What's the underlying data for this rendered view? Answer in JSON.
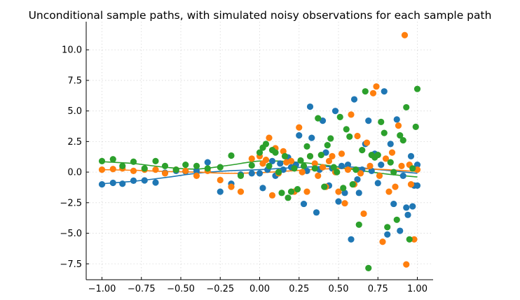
{
  "chart_data": {
    "type": "scatter",
    "title": "Unconditional sample paths, with simulated noisy observations for each sample path",
    "xlabel": "",
    "ylabel": "",
    "xlim": [
      -1.1,
      1.1
    ],
    "ylim": [
      -8.8,
      12.3
    ],
    "x_ticks": [
      -1.0,
      -0.75,
      -0.5,
      -0.25,
      0.0,
      0.25,
      0.5,
      0.75,
      1.0
    ],
    "x_tick_labels": [
      "−1.00",
      "−0.75",
      "−0.50",
      "−0.25",
      "0.00",
      "0.25",
      "0.50",
      "0.75",
      "1.00"
    ],
    "y_ticks": [
      -7.5,
      -5.0,
      -2.5,
      0.0,
      2.5,
      5.0,
      7.5,
      10.0
    ],
    "y_tick_labels": [
      "−7.5",
      "−5.0",
      "−2.5",
      "0.0",
      "2.5",
      "5.0",
      "7.5",
      "10.0"
    ],
    "grid": true,
    "legend": "none",
    "series": [
      {
        "color": "#1f77b4",
        "line": [
          [
            -1.0,
            -0.95
          ],
          [
            -0.8,
            -0.75
          ],
          [
            -0.6,
            -0.45
          ],
          [
            -0.4,
            -0.1
          ],
          [
            -0.2,
            0.1
          ],
          [
            0.0,
            0.2
          ],
          [
            0.2,
            0.35
          ],
          [
            0.4,
            0.45
          ],
          [
            0.6,
            0.4
          ],
          [
            0.8,
            0.15
          ],
          [
            1.0,
            -0.1
          ]
        ],
        "points": [
          [
            -1.0,
            -1.0
          ],
          [
            -0.93,
            -0.88
          ],
          [
            -0.87,
            -0.95
          ],
          [
            -0.8,
            -0.7
          ],
          [
            -0.73,
            -0.68
          ],
          [
            -0.66,
            -0.85
          ],
          [
            -0.6,
            -0.05
          ],
          [
            -0.53,
            0.1
          ],
          [
            -0.47,
            0.05
          ],
          [
            -0.4,
            0.1
          ],
          [
            -0.33,
            0.8
          ],
          [
            -0.25,
            -1.6
          ],
          [
            -0.18,
            -0.95
          ],
          [
            -0.12,
            -0.2
          ],
          [
            -0.05,
            -0.1
          ],
          [
            0.0,
            -0.1
          ],
          [
            0.02,
            -1.3
          ],
          [
            0.05,
            0.2
          ],
          [
            0.08,
            0.9
          ],
          [
            0.1,
            -0.3
          ],
          [
            0.13,
            0.7
          ],
          [
            0.15,
            0.2
          ],
          [
            0.18,
            1.2
          ],
          [
            0.2,
            0.4
          ],
          [
            0.23,
            0.6
          ],
          [
            0.25,
            3.0
          ],
          [
            0.28,
            -2.6
          ],
          [
            0.3,
            0.1
          ],
          [
            0.32,
            5.35
          ],
          [
            0.33,
            2.8
          ],
          [
            0.36,
            -3.3
          ],
          [
            0.38,
            0.2
          ],
          [
            0.4,
            4.2
          ],
          [
            0.42,
            1.6
          ],
          [
            0.44,
            -1.1
          ],
          [
            0.46,
            0.3
          ],
          [
            0.48,
            5.0
          ],
          [
            0.5,
            -2.4
          ],
          [
            0.52,
            0.5
          ],
          [
            0.54,
            -1.7
          ],
          [
            0.56,
            0.6
          ],
          [
            0.58,
            -5.5
          ],
          [
            0.6,
            5.95
          ],
          [
            0.62,
            -0.6
          ],
          [
            0.63,
            -1.7
          ],
          [
            0.65,
            0.2
          ],
          [
            0.67,
            2.3
          ],
          [
            0.69,
            4.2
          ],
          [
            0.71,
            0.1
          ],
          [
            0.73,
            1.5
          ],
          [
            0.75,
            -0.9
          ],
          [
            0.77,
            0.6
          ],
          [
            0.79,
            6.6
          ],
          [
            0.81,
            -5.1
          ],
          [
            0.83,
            2.3
          ],
          [
            0.85,
            -2.6
          ],
          [
            0.87,
            4.3
          ],
          [
            0.89,
            -4.8
          ],
          [
            0.91,
            -0.3
          ],
          [
            0.93,
            -2.9
          ],
          [
            0.94,
            -3.5
          ],
          [
            0.96,
            1.3
          ],
          [
            0.97,
            -2.8
          ],
          [
            0.98,
            -1.1
          ],
          [
            1.0,
            0.6
          ],
          [
            1.0,
            -1.1
          ]
        ]
      },
      {
        "color": "#ff7f0e",
        "line": [
          [
            -1.0,
            0.2
          ],
          [
            -0.8,
            0.15
          ],
          [
            -0.6,
            0.05
          ],
          [
            -0.4,
            0.0
          ],
          [
            -0.2,
            -0.1
          ],
          [
            0.0,
            -0.05
          ],
          [
            0.2,
            0.1
          ],
          [
            0.4,
            0.25
          ],
          [
            0.6,
            0.3
          ],
          [
            0.8,
            0.2
          ],
          [
            1.0,
            0.05
          ]
        ],
        "points": [
          [
            -1.0,
            0.2
          ],
          [
            -0.93,
            0.25
          ],
          [
            -0.87,
            0.3
          ],
          [
            -0.8,
            0.1
          ],
          [
            -0.73,
            0.2
          ],
          [
            -0.66,
            0.2
          ],
          [
            -0.6,
            -0.1
          ],
          [
            -0.53,
            0.2
          ],
          [
            -0.47,
            0.1
          ],
          [
            -0.4,
            -0.3
          ],
          [
            -0.33,
            0.1
          ],
          [
            -0.25,
            -0.65
          ],
          [
            -0.18,
            -1.2
          ],
          [
            -0.12,
            -1.6
          ],
          [
            -0.05,
            1.1
          ],
          [
            0.0,
            1.3
          ],
          [
            0.02,
            0.7
          ],
          [
            0.04,
            1.0
          ],
          [
            0.06,
            2.8
          ],
          [
            0.08,
            -1.9
          ],
          [
            0.1,
            1.95
          ],
          [
            0.12,
            -0.1
          ],
          [
            0.15,
            1.7
          ],
          [
            0.17,
            0.8
          ],
          [
            0.2,
            0.9
          ],
          [
            0.22,
            -1.6
          ],
          [
            0.25,
            3.65
          ],
          [
            0.27,
            0.0
          ],
          [
            0.3,
            -1.6
          ],
          [
            0.32,
            1.3
          ],
          [
            0.35,
            0.7
          ],
          [
            0.37,
            -0.3
          ],
          [
            0.4,
            0.4
          ],
          [
            0.42,
            -1.2
          ],
          [
            0.44,
            0.9
          ],
          [
            0.46,
            1.3
          ],
          [
            0.48,
            0.0
          ],
          [
            0.5,
            -1.6
          ],
          [
            0.52,
            1.5
          ],
          [
            0.54,
            -2.55
          ],
          [
            0.56,
            0.2
          ],
          [
            0.58,
            4.7
          ],
          [
            0.6,
            -1.0
          ],
          [
            0.62,
            2.95
          ],
          [
            0.64,
            -0.1
          ],
          [
            0.66,
            -3.4
          ],
          [
            0.68,
            2.4
          ],
          [
            0.7,
            0.5
          ],
          [
            0.72,
            6.45
          ],
          [
            0.74,
            7.0
          ],
          [
            0.76,
            -0.3
          ],
          [
            0.78,
            -5.7
          ],
          [
            0.8,
            1.1
          ],
          [
            0.82,
            -1.6
          ],
          [
            0.84,
            1.6
          ],
          [
            0.86,
            -1.2
          ],
          [
            0.88,
            3.8
          ],
          [
            0.9,
            0.5
          ],
          [
            0.92,
            11.2
          ],
          [
            0.93,
            -7.55
          ],
          [
            0.95,
            0.6
          ],
          [
            0.96,
            -1.0
          ],
          [
            0.98,
            -5.5
          ],
          [
            1.0,
            0.2
          ]
        ]
      },
      {
        "color": "#2ca02c",
        "line": [
          [
            -1.0,
            0.85
          ],
          [
            -0.8,
            0.7
          ],
          [
            -0.6,
            0.4
          ],
          [
            -0.4,
            0.25
          ],
          [
            -0.2,
            0.55
          ],
          [
            0.0,
            0.9
          ],
          [
            0.2,
            0.85
          ],
          [
            0.4,
            0.6
          ],
          [
            0.6,
            0.2
          ],
          [
            0.8,
            -0.15
          ],
          [
            1.0,
            -0.4
          ]
        ],
        "points": [
          [
            -1.0,
            0.9
          ],
          [
            -0.93,
            1.05
          ],
          [
            -0.87,
            0.5
          ],
          [
            -0.8,
            0.85
          ],
          [
            -0.73,
            0.3
          ],
          [
            -0.66,
            0.9
          ],
          [
            -0.6,
            0.5
          ],
          [
            -0.53,
            0.2
          ],
          [
            -0.47,
            0.6
          ],
          [
            -0.4,
            0.5
          ],
          [
            -0.33,
            0.3
          ],
          [
            -0.25,
            0.4
          ],
          [
            -0.18,
            1.35
          ],
          [
            -0.12,
            -0.3
          ],
          [
            -0.05,
            0.55
          ],
          [
            0.0,
            1.6
          ],
          [
            0.02,
            2.0
          ],
          [
            0.04,
            2.3
          ],
          [
            0.06,
            0.5
          ],
          [
            0.08,
            1.8
          ],
          [
            0.1,
            1.6
          ],
          [
            0.12,
            0.0
          ],
          [
            0.14,
            -1.7
          ],
          [
            0.16,
            1.3
          ],
          [
            0.18,
            -2.1
          ],
          [
            0.2,
            -1.6
          ],
          [
            0.22,
            0.3
          ],
          [
            0.24,
            -1.4
          ],
          [
            0.26,
            0.95
          ],
          [
            0.28,
            0.5
          ],
          [
            0.3,
            2.1
          ],
          [
            0.32,
            1.3
          ],
          [
            0.35,
            0.3
          ],
          [
            0.37,
            4.4
          ],
          [
            0.39,
            1.4
          ],
          [
            0.41,
            -1.2
          ],
          [
            0.43,
            2.2
          ],
          [
            0.45,
            2.75
          ],
          [
            0.47,
            0.4
          ],
          [
            0.49,
            0.0
          ],
          [
            0.51,
            4.5
          ],
          [
            0.53,
            -1.3
          ],
          [
            0.55,
            3.5
          ],
          [
            0.57,
            2.9
          ],
          [
            0.59,
            -1.0
          ],
          [
            0.61,
            0.2
          ],
          [
            0.63,
            -4.3
          ],
          [
            0.65,
            1.8
          ],
          [
            0.67,
            6.6
          ],
          [
            0.69,
            -7.85
          ],
          [
            0.71,
            1.4
          ],
          [
            0.73,
            1.2
          ],
          [
            0.75,
            1.4
          ],
          [
            0.77,
            4.1
          ],
          [
            0.79,
            3.2
          ],
          [
            0.81,
            -4.5
          ],
          [
            0.83,
            0.8
          ],
          [
            0.85,
            0.0
          ],
          [
            0.87,
            -3.9
          ],
          [
            0.89,
            3.0
          ],
          [
            0.91,
            2.6
          ],
          [
            0.93,
            5.3
          ],
          [
            0.95,
            -5.5
          ],
          [
            0.97,
            0.3
          ],
          [
            0.99,
            3.7
          ],
          [
            1.0,
            6.8
          ]
        ]
      }
    ]
  }
}
